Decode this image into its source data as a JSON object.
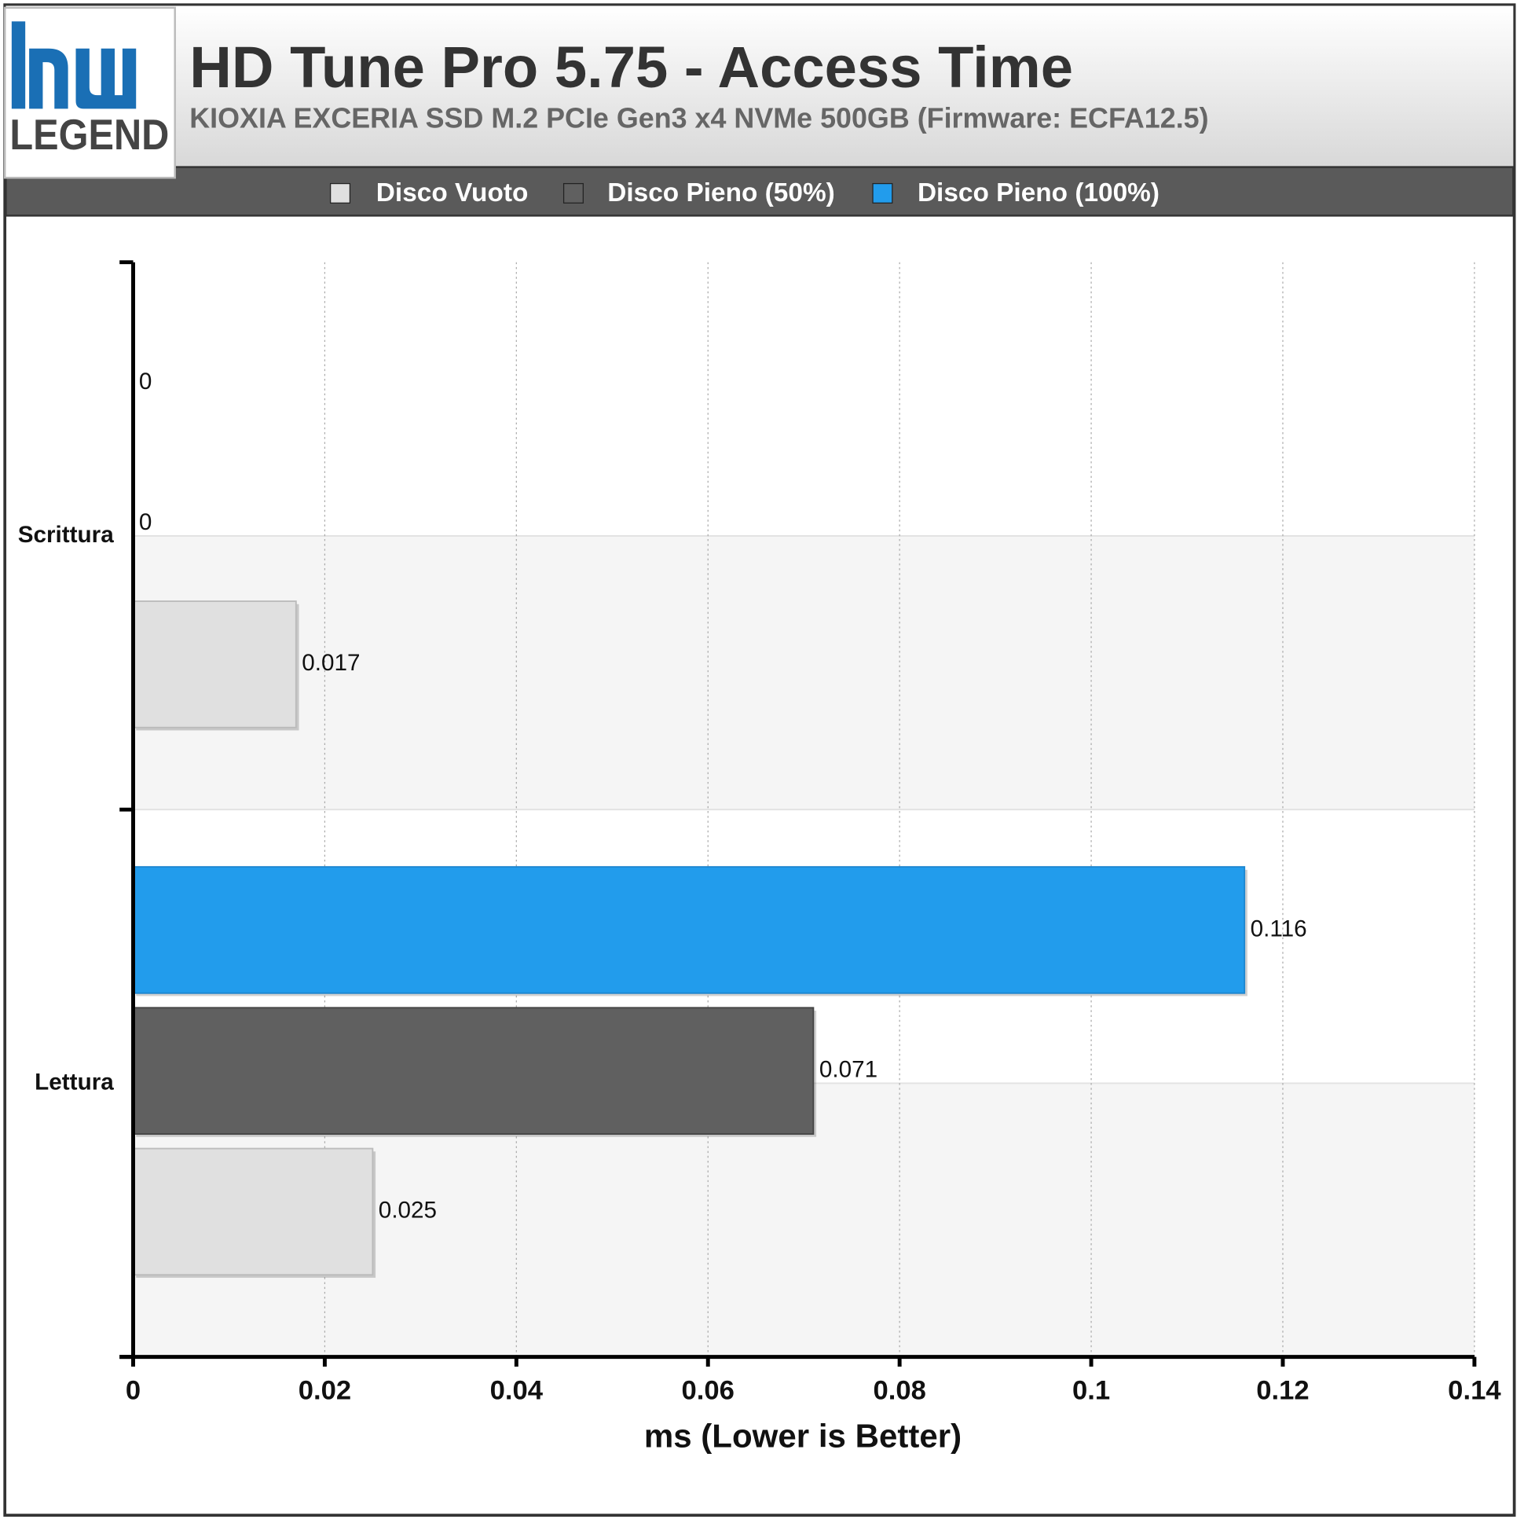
{
  "logo": {
    "text": "LEGEND"
  },
  "chart_data": {
    "type": "hbar",
    "title": "HD Tune Pro 5.75 - Access Time",
    "subtitle": "KIOXIA EXCERIA SSD M.2 PCIe Gen3 x4 NVMe 500GB (Firmware: ECFA12.5)",
    "x_label": "ms (Lower is Better)",
    "categories": [
      "Scrittura",
      "Lettura"
    ],
    "series": [
      {
        "name": "Disco Vuoto",
        "color": "#e0e0e0",
        "values": [
          0.017,
          0.025
        ]
      },
      {
        "name": "Disco Pieno (50%)",
        "color": "#606060",
        "values": [
          0,
          0.071
        ]
      },
      {
        "name": "Disco Pieno (100%)",
        "color": "#229cec",
        "values": [
          0,
          0.116
        ]
      }
    ],
    "xlim": [
      0,
      0.14
    ],
    "xticks": [
      0,
      0.02,
      0.04,
      0.06,
      0.08,
      0.1,
      0.12,
      0.14
    ],
    "grid": true,
    "legend": "top"
  }
}
